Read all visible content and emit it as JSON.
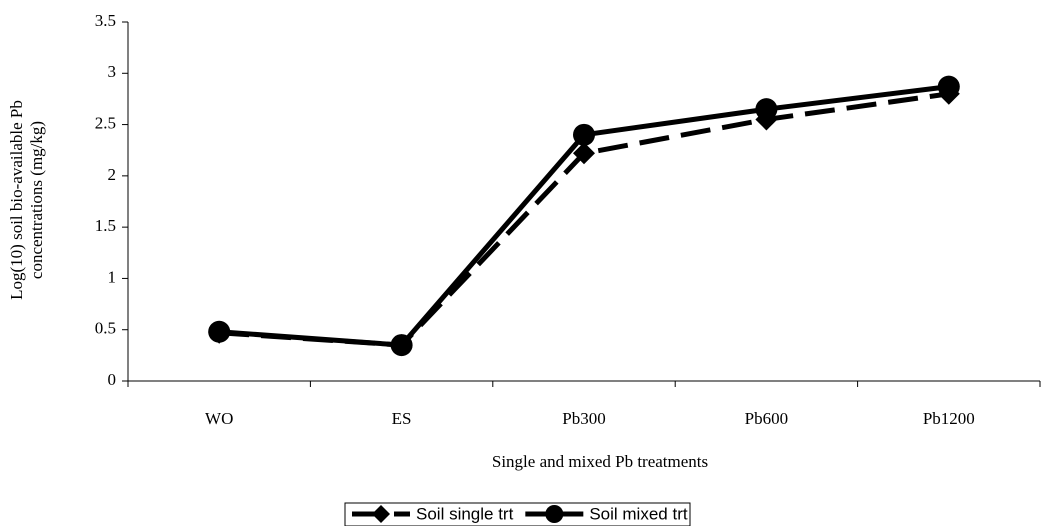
{
  "chart_data": {
    "type": "line",
    "x_label": "Single and mixed Pb treatments",
    "y_label": [
      "Log(10) soil bio-available Pb",
      "concentrations (mg/kg)"
    ],
    "categories": [
      "WO",
      "ES",
      "Pb300",
      "Pb600",
      "Pb1200"
    ],
    "series": [
      {
        "name": "Soil single trt",
        "color": "#000000",
        "dash": true,
        "marker": "diamond",
        "values": [
          0.47,
          0.35,
          2.22,
          2.55,
          2.8
        ]
      },
      {
        "name": "Soil mixed trt",
        "color": "#000000",
        "dash": false,
        "marker": "circle",
        "values": [
          0.48,
          0.35,
          2.4,
          2.65,
          2.87
        ]
      }
    ],
    "ylim": [
      0,
      3.5
    ],
    "yticks": [
      0,
      0.5,
      1,
      1.5,
      2,
      2.5,
      3,
      3.5
    ],
    "grid": false,
    "legend": "bottom"
  }
}
